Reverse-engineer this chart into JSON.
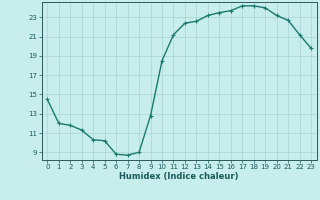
{
  "x": [
    0,
    1,
    2,
    3,
    4,
    5,
    6,
    7,
    8,
    9,
    10,
    11,
    12,
    13,
    14,
    15,
    16,
    17,
    18,
    19,
    20,
    21,
    22,
    23
  ],
  "y": [
    14.5,
    12.0,
    11.8,
    11.3,
    10.3,
    10.2,
    8.8,
    8.7,
    9.0,
    12.8,
    18.5,
    21.2,
    22.4,
    22.6,
    23.2,
    23.5,
    23.7,
    24.2,
    24.2,
    24.0,
    23.2,
    22.7,
    21.2,
    19.8
  ],
  "line_color": "#1a7a6e",
  "marker": "+",
  "marker_size": 3.5,
  "bg_color": "#c8eded",
  "grid_color": "#aad4d4",
  "axis_color": "#2a5a5a",
  "xlabel": "Humidex (Indice chaleur)",
  "xlim": [
    -0.5,
    23.5
  ],
  "ylim": [
    8.2,
    24.6
  ],
  "yticks": [
    9,
    11,
    13,
    15,
    17,
    19,
    21,
    23
  ],
  "xticks": [
    0,
    1,
    2,
    3,
    4,
    5,
    6,
    7,
    8,
    9,
    10,
    11,
    12,
    13,
    14,
    15,
    16,
    17,
    18,
    19,
    20,
    21,
    22,
    23
  ],
  "xtick_labels": [
    "0",
    "1",
    "2",
    "3",
    "4",
    "5",
    "6",
    "7",
    "8",
    "9",
    "10",
    "11",
    "12",
    "13",
    "14",
    "15",
    "16",
    "17",
    "18",
    "19",
    "20",
    "21",
    "22",
    "23"
  ],
  "font_color": "#1a5a5a",
  "linewidth": 1.0,
  "tick_fontsize": 5.0,
  "xlabel_fontsize": 6.0,
  "xlabel_bold": true
}
